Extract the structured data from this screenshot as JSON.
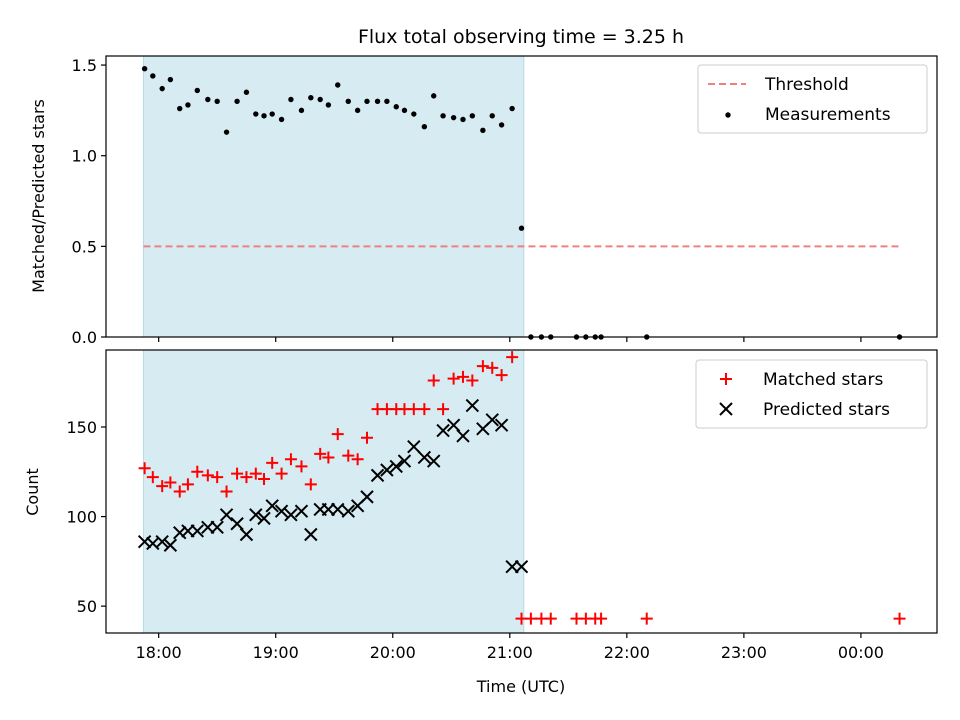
{
  "chart_data": {
    "type": "scatter",
    "title": "Flux total observing time = 3.25 h",
    "xlabel": "Time (UTC)",
    "x_unit": "hours UTC, continuing past midnight (24.x = 00:xx next day)",
    "xlim": [
      17.55,
      24.65
    ],
    "xticks": [
      18,
      19,
      20,
      21,
      22,
      23,
      24
    ],
    "xtick_labels": [
      "18:00",
      "19:00",
      "20:00",
      "21:00",
      "22:00",
      "23:00",
      "00:00"
    ],
    "observing_window": {
      "start": 17.87,
      "end": 21.12,
      "color": "#add8e6"
    },
    "panels": [
      {
        "ylabel": "Matched/Predicted stars",
        "ylim": [
          0.0,
          1.55
        ],
        "yticks": [
          0.0,
          0.5,
          1.0,
          1.5
        ],
        "ytick_labels": [
          "0.0",
          "0.5",
          "1.0",
          "1.5"
        ],
        "legend_position": "top-right",
        "threshold": {
          "name": "Threshold",
          "value": 0.5,
          "x": [
            17.87,
            24.33
          ],
          "color": "#f08080",
          "style": "dashed"
        },
        "series": [
          {
            "name": "Measurements",
            "marker": "dot",
            "color": "#000000",
            "x": [
              17.88,
              17.95,
              18.03,
              18.1,
              18.18,
              18.25,
              18.33,
              18.42,
              18.5,
              18.58,
              18.67,
              18.75,
              18.83,
              18.9,
              18.97,
              19.05,
              19.13,
              19.22,
              19.3,
              19.38,
              19.45,
              19.53,
              19.62,
              19.7,
              19.78,
              19.87,
              19.95,
              20.03,
              20.1,
              20.18,
              20.27,
              20.35,
              20.43,
              20.52,
              20.6,
              20.68,
              20.77,
              20.85,
              20.93,
              21.02,
              21.1,
              21.18,
              21.27,
              21.35,
              21.57,
              21.65,
              21.73,
              21.78,
              22.17,
              24.33
            ],
            "y": [
              1.48,
              1.44,
              1.37,
              1.42,
              1.26,
              1.28,
              1.36,
              1.31,
              1.3,
              1.13,
              1.3,
              1.35,
              1.23,
              1.22,
              1.23,
              1.2,
              1.31,
              1.25,
              1.32,
              1.31,
              1.28,
              1.39,
              1.3,
              1.25,
              1.3,
              1.3,
              1.3,
              1.27,
              1.25,
              1.23,
              1.16,
              1.33,
              1.22,
              1.21,
              1.2,
              1.22,
              1.14,
              1.22,
              1.17,
              1.26,
              0.6,
              0.0,
              0.0,
              0.0,
              0.0,
              0.0,
              0.0,
              0.0,
              0.0,
              0.0
            ]
          }
        ]
      },
      {
        "ylabel": "Count",
        "ylim": [
          35,
          193
        ],
        "yticks": [
          50,
          100,
          150
        ],
        "ytick_labels": [
          "50",
          "100",
          "150"
        ],
        "legend_position": "top-right",
        "series": [
          {
            "name": "Matched stars",
            "marker": "plus",
            "color": "#ff0000",
            "x": [
              17.88,
              17.95,
              18.03,
              18.1,
              18.18,
              18.25,
              18.33,
              18.42,
              18.5,
              18.58,
              18.67,
              18.75,
              18.83,
              18.9,
              18.97,
              19.05,
              19.13,
              19.22,
              19.3,
              19.38,
              19.45,
              19.53,
              19.62,
              19.7,
              19.78,
              19.87,
              19.95,
              20.03,
              20.1,
              20.18,
              20.27,
              20.35,
              20.43,
              20.52,
              20.6,
              20.68,
              20.77,
              20.85,
              20.93,
              21.02,
              21.1,
              21.18,
              21.27,
              21.35,
              21.57,
              21.65,
              21.73,
              21.78,
              22.17,
              24.33
            ],
            "y": [
              127,
              122,
              117,
              119,
              114,
              118,
              125,
              123,
              122,
              114,
              124,
              122,
              124,
              121,
              130,
              124,
              132,
              128,
              118,
              135,
              133,
              146,
              134,
              132,
              144,
              160,
              160,
              160,
              160,
              160,
              160,
              176,
              160,
              177,
              178,
              176,
              184,
              183,
              179,
              189,
              43,
              43,
              43,
              43,
              43,
              43,
              43,
              43,
              43,
              43
            ]
          },
          {
            "name": "Predicted stars",
            "marker": "x",
            "color": "#000000",
            "x": [
              17.88,
              17.95,
              18.03,
              18.1,
              18.18,
              18.25,
              18.33,
              18.42,
              18.5,
              18.58,
              18.67,
              18.75,
              18.83,
              18.9,
              18.97,
              19.05,
              19.13,
              19.22,
              19.3,
              19.38,
              19.45,
              19.53,
              19.62,
              19.7,
              19.78,
              19.87,
              19.95,
              20.03,
              20.1,
              20.18,
              20.27,
              20.35,
              20.43,
              20.52,
              20.6,
              20.68,
              20.77,
              20.85,
              20.93,
              21.02,
              21.1
            ],
            "y": [
              86,
              85,
              86,
              84,
              91,
              92,
              92,
              94,
              94,
              101,
              96,
              90,
              101,
              99,
              106,
              103,
              101,
              103,
              90,
              104,
              104,
              104,
              103,
              106,
              111,
              123,
              126,
              128,
              131,
              139,
              133,
              131,
              148,
              151,
              145,
              162,
              149,
              154,
              151,
              72,
              72
            ]
          }
        ]
      }
    ]
  }
}
